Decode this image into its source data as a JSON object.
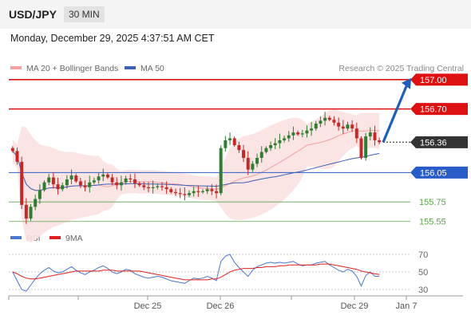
{
  "header": {
    "symbol": "USD/JPY",
    "timeframe": "30 MIN"
  },
  "datetime": "Monday, December 29, 2025 4:37:51 AM CET",
  "legend": {
    "ma20": "MA 20 + Bollinger Bands",
    "ma50": "MA 50",
    "credit": "Research © 2025 Trading Central",
    "rsi": "RSI",
    "ma9": "9MA"
  },
  "colors": {
    "resistance": "#dd1111",
    "support_main": "#2a5cc9",
    "support_minor": "#59a84a",
    "bollinger_fill": "#fbe1e1",
    "ma20": "#f4a0a0",
    "ma50": "#3a61b5",
    "bull_candle": "#2e7d32",
    "bear_candle": "#c62828",
    "current_price_tag": "#333333",
    "arrow": "#1f5fb8",
    "rsi_line": "#4a78d0",
    "rsi_ma": "#e02020"
  },
  "chart_data": [
    {
      "type": "candlestick",
      "title": "USD/JPY 30 MIN",
      "ylim": [
        155.45,
        157.08
      ],
      "x_ticks": [
        "Dec 25",
        "Dec 26",
        "Dec 29",
        "Jan 7"
      ],
      "levels": [
        {
          "label": "157.00",
          "value": 157.0,
          "kind": "resistance",
          "style": "tag"
        },
        {
          "label": "156.70",
          "value": 156.7,
          "kind": "resistance",
          "style": "tag"
        },
        {
          "label": "156.36",
          "value": 156.36,
          "kind": "current",
          "style": "tag"
        },
        {
          "label": "156.05",
          "value": 156.05,
          "kind": "support_main",
          "style": "tag"
        },
        {
          "label": "155.75",
          "value": 155.75,
          "kind": "support_minor",
          "style": "text"
        },
        {
          "label": "155.55",
          "value": 155.55,
          "kind": "support_minor",
          "style": "text"
        }
      ],
      "projection": {
        "from": 156.36,
        "to": 157.0
      },
      "close_series": [
        156.27,
        156.16,
        155.72,
        155.58,
        155.7,
        155.78,
        155.87,
        155.95,
        156.0,
        155.93,
        155.88,
        155.92,
        155.98,
        156.02,
        155.96,
        155.92,
        155.9,
        155.95,
        155.97,
        156.01,
        156.03,
        156.0,
        155.95,
        155.92,
        155.95,
        155.99,
        155.98,
        155.94,
        155.92,
        155.9,
        155.89,
        155.9,
        155.91,
        155.9,
        155.88,
        155.85,
        155.84,
        155.83,
        155.82,
        155.84,
        155.86,
        155.85,
        155.86,
        155.88,
        155.86,
        155.84,
        156.3,
        156.38,
        156.4,
        156.33,
        156.28,
        156.2,
        156.08,
        156.14,
        156.2,
        156.26,
        156.3,
        156.33,
        156.35,
        156.38,
        156.4,
        156.43,
        156.46,
        156.44,
        156.45,
        156.48,
        156.5,
        156.55,
        156.58,
        156.61,
        156.59,
        156.56,
        156.52,
        156.5,
        156.54,
        156.5,
        156.4,
        156.2,
        156.42,
        156.46,
        156.38,
        156.36
      ],
      "ma20_range": [
        155.8,
        156.45
      ],
      "ma50_range": [
        155.85,
        156.4
      ]
    },
    {
      "type": "line",
      "title": "RSI",
      "series": [
        {
          "name": "RSI"
        },
        {
          "name": "9MA"
        }
      ],
      "ylim": [
        20,
        80
      ],
      "y_ticks": [
        70,
        50,
        30
      ],
      "reference_lines": [
        70,
        50,
        30
      ],
      "rsi_values": [
        50,
        40,
        30,
        28,
        35,
        42,
        48,
        52,
        55,
        51,
        49,
        50,
        53,
        56,
        52,
        49,
        47,
        50,
        52,
        55,
        57,
        54,
        50,
        48,
        50,
        53,
        52,
        48,
        46,
        44,
        43,
        44,
        45,
        44,
        42,
        40,
        39,
        38,
        37,
        40,
        43,
        42,
        43,
        45,
        43,
        40,
        62,
        68,
        70,
        61,
        55,
        50,
        45,
        52,
        56,
        58,
        60,
        61,
        60,
        61,
        60,
        61,
        62,
        59,
        57,
        58,
        58,
        60,
        61,
        62,
        58,
        55,
        52,
        50,
        53,
        51,
        45,
        34,
        46,
        50,
        45,
        45
      ],
      "rsi_ma_values": [
        50,
        48,
        45,
        43,
        42,
        42,
        43,
        44,
        45,
        46,
        47,
        48,
        49,
        50,
        51,
        51,
        51,
        51,
        51,
        51,
        52,
        52,
        52,
        51,
        51,
        51,
        51,
        51,
        51,
        50,
        49,
        48,
        47,
        46,
        45,
        44,
        43,
        42,
        41,
        41,
        41,
        41,
        41,
        41,
        42,
        42,
        44,
        47,
        50,
        52,
        53,
        54,
        54,
        54,
        55,
        55,
        56,
        56,
        56,
        57,
        57,
        58,
        58,
        58,
        58,
        58,
        58,
        58,
        59,
        59,
        59,
        58,
        57,
        56,
        55,
        54,
        53,
        51,
        50,
        49,
        48,
        47
      ]
    }
  ]
}
